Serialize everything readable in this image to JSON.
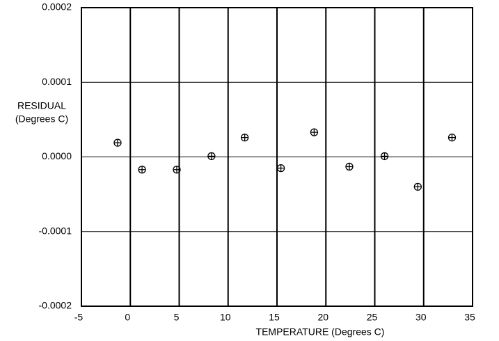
{
  "chart_data": {
    "type": "scatter",
    "xlabel": "TEMPERATURE  (Degrees C)",
    "ylabel": [
      "RESIDUAL",
      "(Degrees C)"
    ],
    "x": [
      -1.3,
      1.2,
      4.75,
      8.3,
      11.7,
      15.4,
      18.8,
      22.4,
      26.0,
      29.4,
      32.9
    ],
    "values": [
      1.9e-05,
      -1.7e-05,
      -1.7e-05,
      1e-06,
      2.6e-05,
      -1.5e-05,
      3.3e-05,
      -1.3e-05,
      1e-06,
      -4e-05,
      2.6e-05
    ],
    "xlim": [
      -5,
      35
    ],
    "xticks": [
      -5,
      0,
      5,
      10,
      15,
      20,
      25,
      30,
      35
    ],
    "ylim": [
      -0.0002,
      0.0002
    ],
    "yticks": [
      {
        "value": -0.0002,
        "label": "-0.0002"
      },
      {
        "value": -0.0001,
        "label": "-0.0001"
      },
      {
        "value": 0,
        "label": "0.0000"
      },
      {
        "value": 0.0001,
        "label": "0.0001"
      },
      {
        "value": 0.0002,
        "label": "0.0002"
      }
    ],
    "grid": true,
    "color": "#000000"
  }
}
